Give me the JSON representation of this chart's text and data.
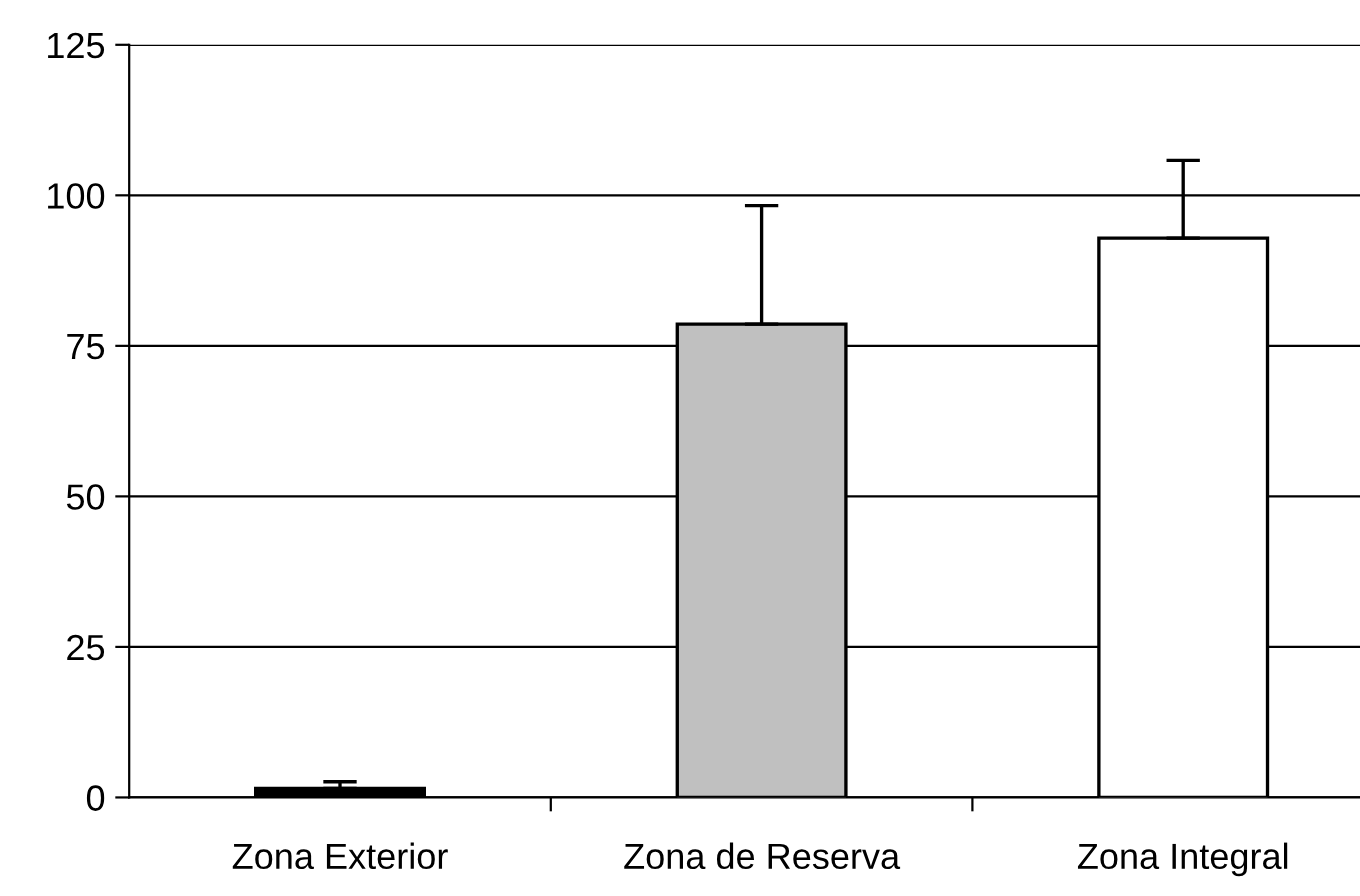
{
  "chart_data": {
    "type": "bar",
    "categories": [
      "Zona Exterior",
      "Zona de Reserva",
      "Zona Integral"
    ],
    "values": [
      1.5,
      78.6,
      92.9
    ],
    "colors": [
      "#000000",
      "#c0c0c0",
      "#ffffff"
    ],
    "errors": [
      [
        1.5,
        2.6
      ],
      [
        78.6,
        98.3
      ],
      [
        92.9,
        105.8
      ]
    ],
    "ylim": [
      0,
      125
    ],
    "yticks": [
      0,
      25,
      50,
      75,
      100,
      125
    ],
    "grid": "y"
  }
}
